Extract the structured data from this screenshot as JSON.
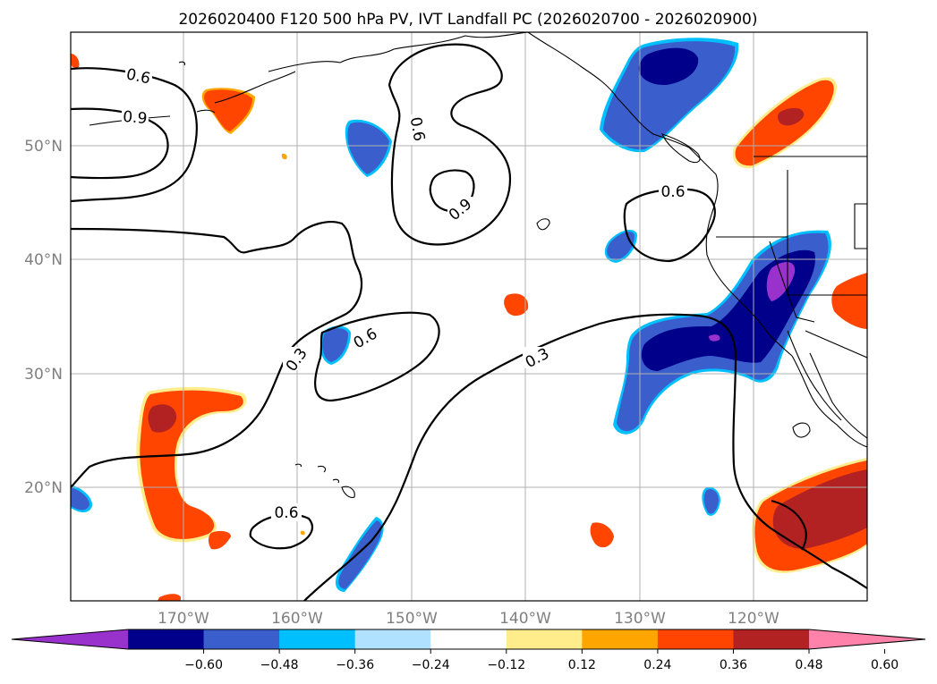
{
  "title": "2026020400 F120 500 hPa PV, IVT Landfall PC (2026020700 - 2026020900)",
  "lat_labels": [
    "50°N",
    "40°N",
    "30°N",
    "20°N"
  ],
  "lon_labels": [
    "170°W",
    "160°W",
    "150°W",
    "140°W",
    "130°W",
    "120°W"
  ],
  "contour_labels": [
    "0.6",
    "0.9",
    "0.6",
    "0.9",
    "0.6",
    "0.3",
    "0.6",
    "0.3",
    "0.6"
  ],
  "colorbar": {
    "ticks": [
      "−0.60",
      "−0.48",
      "−0.36",
      "−0.24",
      "−0.12",
      "0.12",
      "0.24",
      "0.36",
      "0.48",
      "0.60"
    ],
    "colors": [
      "#9932CC",
      "#00008B",
      "#3A5FCD",
      "#00BFFF",
      "#B0E2FF",
      "#FFFFFF",
      "#FFEC8B",
      "#FFA500",
      "#FF4500",
      "#B22222",
      "#FF82AB"
    ]
  }
}
